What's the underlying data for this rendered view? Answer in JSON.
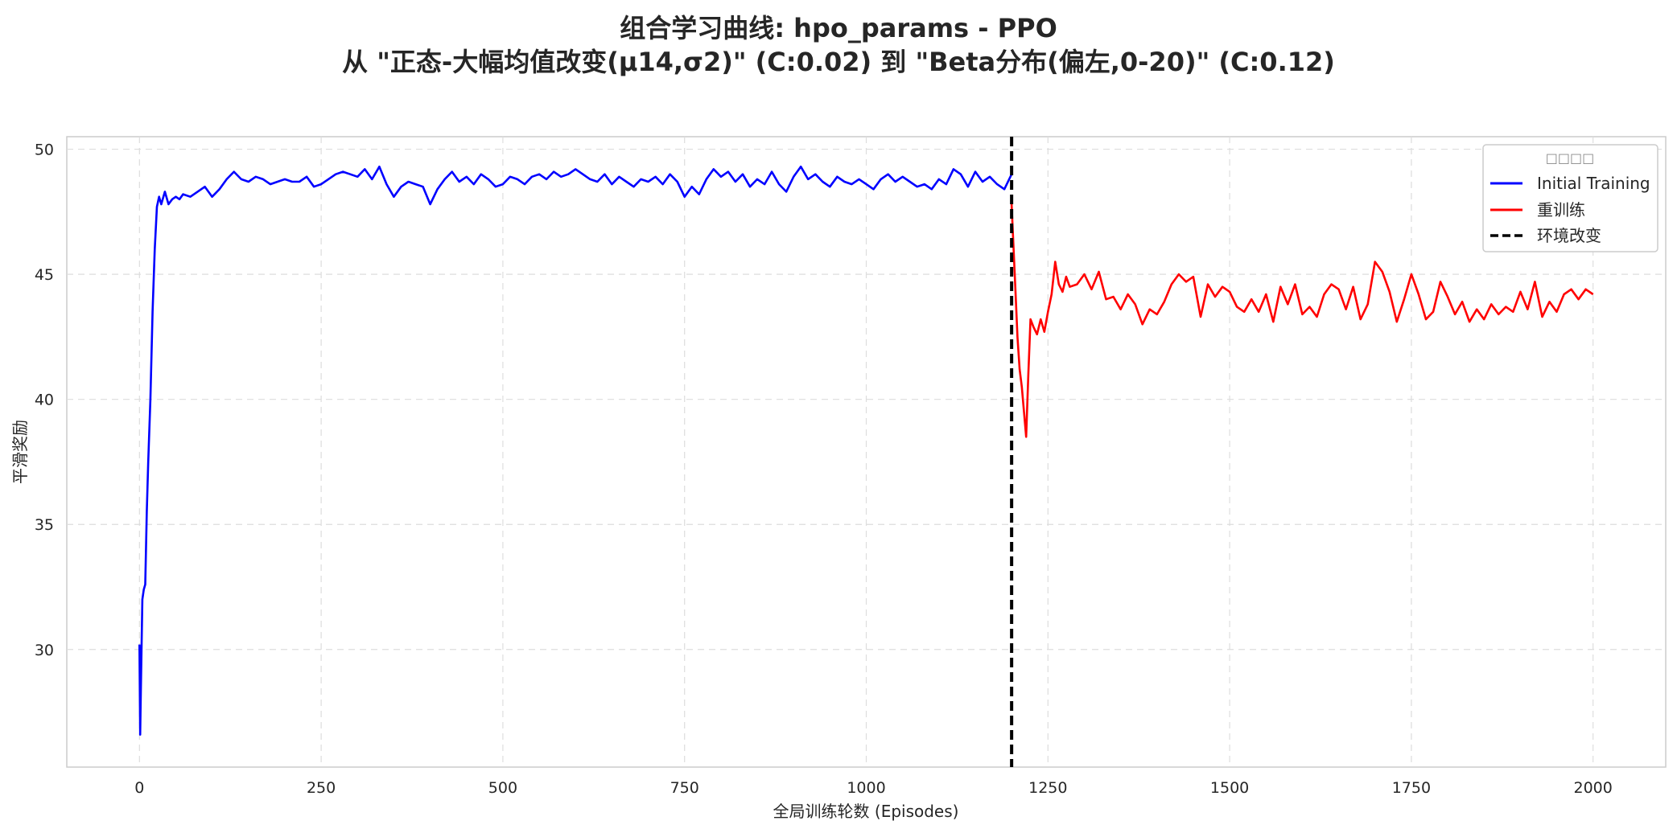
{
  "figure": {
    "title_line1": "组合学习曲线: hpo_params - PPO",
    "title_line2": "从 \"正态-大幅均值改变(μ14,σ2)\" (C:0.02) 到 \"Beta分布(偏左,0-20)\" (C:0.12)"
  },
  "chart_data": {
    "type": "line",
    "xlabel": "全局训练轮数 (Episodes)",
    "ylabel": "平滑奖励",
    "xlim": [
      -100,
      2100
    ],
    "ylim": [
      25.3,
      50.5
    ],
    "xticks": [
      0,
      250,
      500,
      750,
      1000,
      1250,
      1500,
      1750,
      2000
    ],
    "yticks": [
      30,
      35,
      40,
      45,
      50
    ],
    "grid": true,
    "legend_placement": "top-right",
    "legend_title": "□□□□",
    "series": [
      {
        "name": "Initial Training",
        "color": "#0000ff",
        "x": [
          0,
          1,
          2,
          4,
          6,
          8,
          10,
          12,
          15,
          18,
          21,
          24,
          27,
          30,
          35,
          40,
          45,
          50,
          55,
          60,
          70,
          80,
          90,
          100,
          110,
          120,
          130,
          140,
          150,
          160,
          170,
          180,
          190,
          200,
          210,
          220,
          230,
          240,
          250,
          260,
          270,
          280,
          290,
          300,
          310,
          320,
          330,
          340,
          350,
          360,
          370,
          380,
          390,
          400,
          410,
          420,
          430,
          440,
          450,
          460,
          470,
          480,
          490,
          500,
          510,
          520,
          530,
          540,
          550,
          560,
          570,
          580,
          590,
          600,
          610,
          620,
          630,
          640,
          650,
          660,
          670,
          680,
          690,
          700,
          710,
          720,
          730,
          740,
          750,
          760,
          770,
          780,
          790,
          800,
          810,
          820,
          830,
          840,
          850,
          860,
          870,
          880,
          890,
          900,
          910,
          920,
          930,
          940,
          950,
          960,
          970,
          980,
          990,
          1000,
          1010,
          1020,
          1030,
          1040,
          1050,
          1060,
          1070,
          1080,
          1090,
          1100,
          1110,
          1120,
          1130,
          1140,
          1150,
          1160,
          1170,
          1180,
          1190,
          1200
        ],
        "y": [
          30.2,
          26.6,
          28.5,
          32.0,
          32.4,
          32.6,
          35.5,
          37.5,
          40.0,
          43.5,
          46.0,
          47.7,
          48.1,
          47.8,
          48.3,
          47.8,
          48.0,
          48.1,
          48.0,
          48.2,
          48.1,
          48.3,
          48.5,
          48.1,
          48.4,
          48.8,
          49.1,
          48.8,
          48.7,
          48.9,
          48.8,
          48.6,
          48.7,
          48.8,
          48.7,
          48.7,
          48.9,
          48.5,
          48.6,
          48.8,
          49.0,
          49.1,
          49.0,
          48.9,
          49.2,
          48.8,
          49.3,
          48.6,
          48.1,
          48.5,
          48.7,
          48.6,
          48.5,
          47.8,
          48.4,
          48.8,
          49.1,
          48.7,
          48.9,
          48.6,
          49.0,
          48.8,
          48.5,
          48.6,
          48.9,
          48.8,
          48.6,
          48.9,
          49.0,
          48.8,
          49.1,
          48.9,
          49.0,
          49.2,
          49.0,
          48.8,
          48.7,
          49.0,
          48.6,
          48.9,
          48.7,
          48.5,
          48.8,
          48.7,
          48.9,
          48.6,
          49.0,
          48.7,
          48.1,
          48.5,
          48.2,
          48.8,
          49.2,
          48.9,
          49.1,
          48.7,
          49.0,
          48.5,
          48.8,
          48.6,
          49.1,
          48.6,
          48.3,
          48.9,
          49.3,
          48.8,
          49.0,
          48.7,
          48.5,
          48.9,
          48.7,
          48.6,
          48.8,
          48.6,
          48.4,
          48.8,
          49.0,
          48.7,
          48.9,
          48.7,
          48.5,
          48.6,
          48.4,
          48.8,
          48.6,
          49.2,
          49.0,
          48.5,
          49.1,
          48.7,
          48.9,
          48.6,
          48.4,
          49.0
        ]
      },
      {
        "name": "重训练",
        "color": "#ff0000",
        "x": [
          1200,
          1202,
          1205,
          1208,
          1211,
          1214,
          1217,
          1220,
          1223,
          1226,
          1230,
          1235,
          1240,
          1245,
          1250,
          1255,
          1260,
          1265,
          1270,
          1275,
          1280,
          1290,
          1300,
          1310,
          1320,
          1330,
          1340,
          1350,
          1360,
          1370,
          1380,
          1390,
          1400,
          1410,
          1420,
          1430,
          1440,
          1450,
          1460,
          1470,
          1480,
          1490,
          1500,
          1510,
          1520,
          1530,
          1540,
          1550,
          1560,
          1570,
          1580,
          1590,
          1600,
          1610,
          1620,
          1630,
          1640,
          1650,
          1660,
          1670,
          1680,
          1690,
          1700,
          1710,
          1720,
          1730,
          1740,
          1750,
          1760,
          1770,
          1780,
          1790,
          1800,
          1810,
          1820,
          1830,
          1840,
          1850,
          1860,
          1870,
          1880,
          1890,
          1900,
          1910,
          1920,
          1930,
          1940,
          1950,
          1960,
          1970,
          1980,
          1990,
          2000
        ],
        "y": [
          47.8,
          46.5,
          44.5,
          42.5,
          41.2,
          40.5,
          39.5,
          38.5,
          41.0,
          43.2,
          42.9,
          42.6,
          43.2,
          42.7,
          43.5,
          44.2,
          45.5,
          44.6,
          44.3,
          44.9,
          44.5,
          44.6,
          45.0,
          44.4,
          45.1,
          44.0,
          44.1,
          43.6,
          44.2,
          43.8,
          43.0,
          43.6,
          43.4,
          43.9,
          44.6,
          45.0,
          44.7,
          44.9,
          43.3,
          44.6,
          44.1,
          44.5,
          44.3,
          43.7,
          43.5,
          44.0,
          43.5,
          44.2,
          43.1,
          44.5,
          43.8,
          44.6,
          43.4,
          43.7,
          43.3,
          44.2,
          44.6,
          44.4,
          43.6,
          44.5,
          43.2,
          43.8,
          45.5,
          45.1,
          44.3,
          43.1,
          44.0,
          45.0,
          44.2,
          43.2,
          43.5,
          44.7,
          44.1,
          43.4,
          43.9,
          43.1,
          43.6,
          43.2,
          43.8,
          43.4,
          43.7,
          43.5,
          44.3,
          43.6,
          44.7,
          43.3,
          43.9,
          43.5,
          44.2,
          44.4,
          44.0,
          44.4,
          44.2
        ]
      }
    ],
    "annotations": [
      {
        "type": "vline",
        "x": 1200,
        "label": "环境改变",
        "color": "#000000"
      }
    ]
  }
}
